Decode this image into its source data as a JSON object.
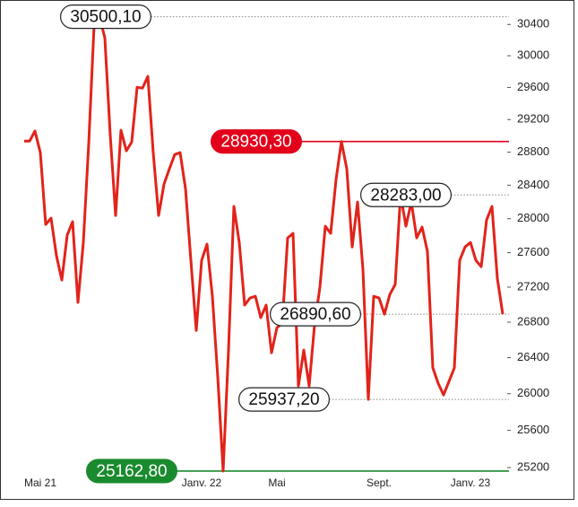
{
  "chart_data": {
    "type": "line",
    "log": true,
    "ylim": [
      25000,
      30600
    ],
    "yticks": [
      25200,
      25600,
      26000,
      26400,
      26800,
      27200,
      27600,
      28000,
      28400,
      28800,
      29200,
      29600,
      30000,
      30400
    ],
    "categories": [
      null,
      null,
      null,
      "Mai 21",
      null,
      null,
      null,
      null,
      null,
      null,
      null,
      null,
      null,
      null,
      null,
      null,
      null,
      null,
      null,
      null,
      null,
      null,
      null,
      null,
      null,
      null,
      null,
      null,
      null,
      null,
      null,
      null,
      null,
      "Janv. 22",
      null,
      null,
      null,
      null,
      null,
      null,
      null,
      null,
      null,
      null,
      null,
      null,
      null,
      "Mai",
      null,
      null,
      null,
      null,
      null,
      null,
      null,
      null,
      null,
      null,
      null,
      null,
      null,
      null,
      null,
      null,
      null,
      null,
      "Sept.",
      null,
      null,
      null,
      null,
      null,
      null,
      null,
      null,
      null,
      null,
      null,
      null,
      null,
      null,
      null,
      null,
      "Janv. 23",
      null,
      null,
      null,
      null,
      null,
      null
    ],
    "series": [
      {
        "color": "#e2231a",
        "values": [
          28935,
          28935,
          29059,
          28794,
          27932,
          28007,
          27564,
          27282,
          27805,
          27965,
          27025,
          27720,
          28904,
          30389,
          30500.1,
          30227,
          29013,
          28038,
          29069,
          28816,
          28925,
          29602,
          29592,
          29739,
          28794,
          28038,
          28413,
          28597,
          28771,
          28794,
          28360,
          27511,
          26707,
          27511,
          27700,
          27095,
          26185,
          25162.8,
          26485,
          28146,
          27720,
          26994,
          27075,
          27095,
          26851,
          26994,
          26455,
          26737,
          26790,
          27773,
          27826,
          26087,
          26485,
          26087,
          26768,
          27199,
          27911,
          27826,
          28468,
          28930.3,
          28597,
          27667,
          28199,
          27408,
          25937.2,
          27095,
          27075,
          26891,
          27115,
          27231,
          28283,
          27911,
          28199,
          27773,
          27900,
          27614,
          26286,
          26115,
          25987,
          26135,
          26286,
          27511,
          27667,
          27720,
          27511,
          27438,
          27985,
          28146,
          27302,
          26890.6
        ]
      }
    ],
    "annotations": [
      {
        "value": 30500.1,
        "label": "30500,10",
        "color": "#ffffff",
        "line_color": "#888888"
      },
      {
        "value": 28930.3,
        "label": "28930,30",
        "color": "#e2001a",
        "line_color": "#e2001a"
      },
      {
        "value": 28283,
        "label": "28283,00",
        "color": "#ffffff",
        "line_color": "#888888"
      },
      {
        "value": 26890.6,
        "label": "26890,60",
        "color": "#ffffff",
        "line_color": "#888888"
      },
      {
        "value": 25937.2,
        "label": "25937,20",
        "color": "#ffffff",
        "line_color": "#888888"
      },
      {
        "value": 25162.8,
        "label": "25162,80",
        "color": "#1a8a2e",
        "line_color": "#1a8a2e"
      }
    ]
  }
}
